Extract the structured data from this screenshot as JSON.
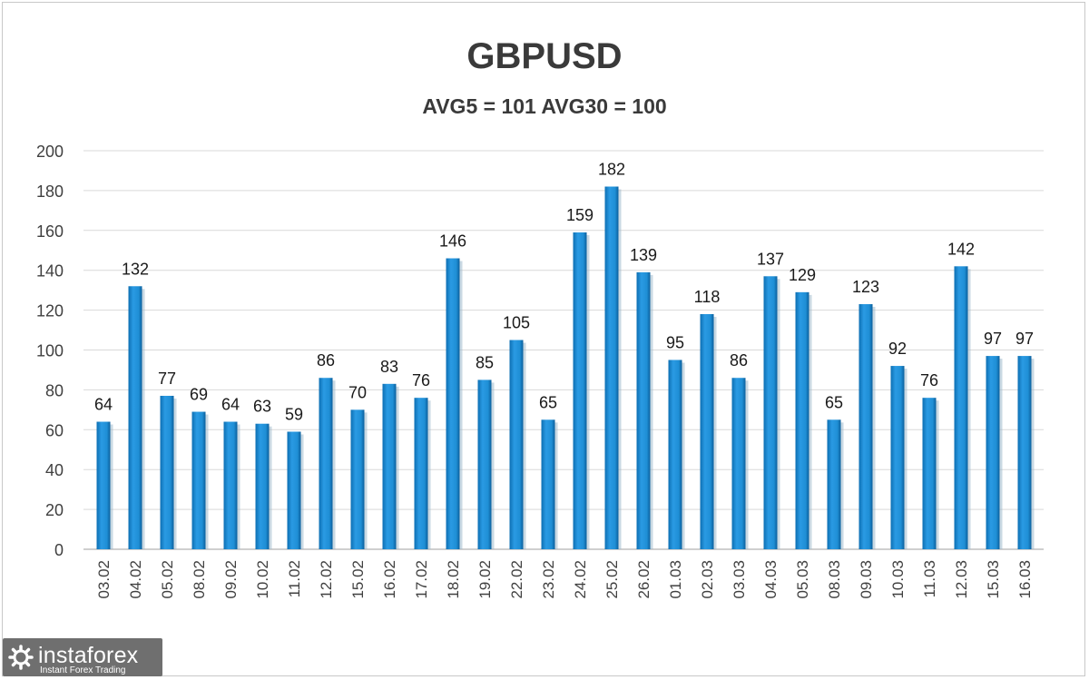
{
  "chart_data": {
    "type": "bar",
    "title": "GBPUSD",
    "subtitle": "AVG5 = 101 AVG30 = 100",
    "categories": [
      "03.02",
      "04.02",
      "05.02",
      "08.02",
      "09.02",
      "10.02",
      "11.02",
      "12.02",
      "15.02",
      "16.02",
      "17.02",
      "18.02",
      "19.02",
      "22.02",
      "23.02",
      "24.02",
      "25.02",
      "26.02",
      "01.03",
      "02.03",
      "03.03",
      "04.03",
      "05.03",
      "08.03",
      "09.03",
      "10.03",
      "11.03",
      "12.03",
      "15.03",
      "16.03"
    ],
    "values": [
      64,
      132,
      77,
      69,
      64,
      63,
      59,
      86,
      70,
      83,
      76,
      146,
      85,
      105,
      65,
      159,
      182,
      139,
      95,
      118,
      86,
      137,
      129,
      65,
      123,
      92,
      76,
      142,
      97,
      97
    ],
    "ylim": [
      0,
      200
    ],
    "yticks": [
      0,
      20,
      40,
      60,
      80,
      100,
      120,
      140,
      160,
      180,
      200
    ],
    "grid": true,
    "bar_color": "#1f8fd6",
    "data_labels": true
  },
  "watermark": {
    "name": "instaforex",
    "tagline": "Instant Forex Trading"
  }
}
